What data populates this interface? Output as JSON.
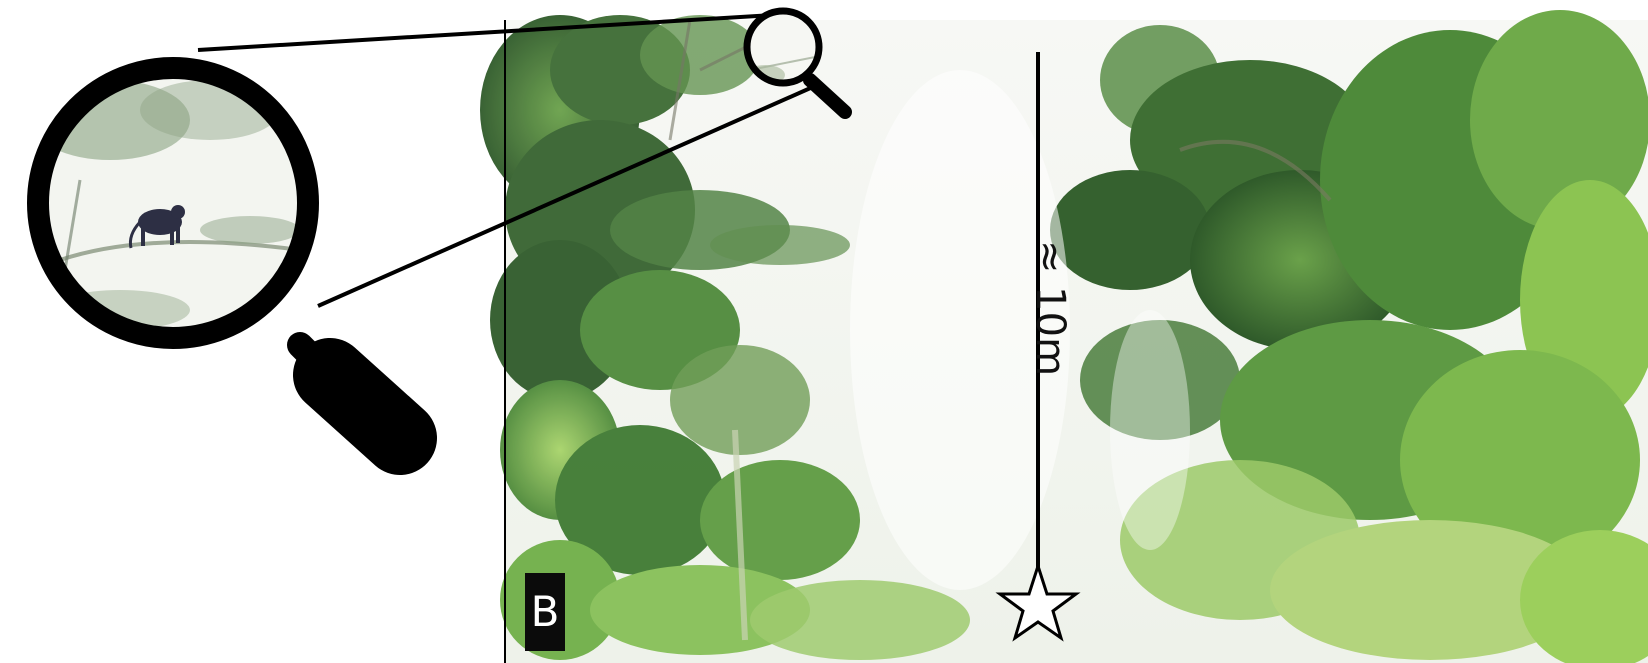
{
  "figure": {
    "panel_label": "B",
    "scale_label": "≈ 10m"
  },
  "icons": {
    "magnifier": "magnifier-icon",
    "star": "star-icon"
  },
  "colors": {
    "foliage_dark": "#2f5a2a",
    "foliage_mid": "#4e8a3a",
    "foliage_light": "#8fc25a",
    "sky": "#f4f6f2",
    "outline": "#000000"
  }
}
